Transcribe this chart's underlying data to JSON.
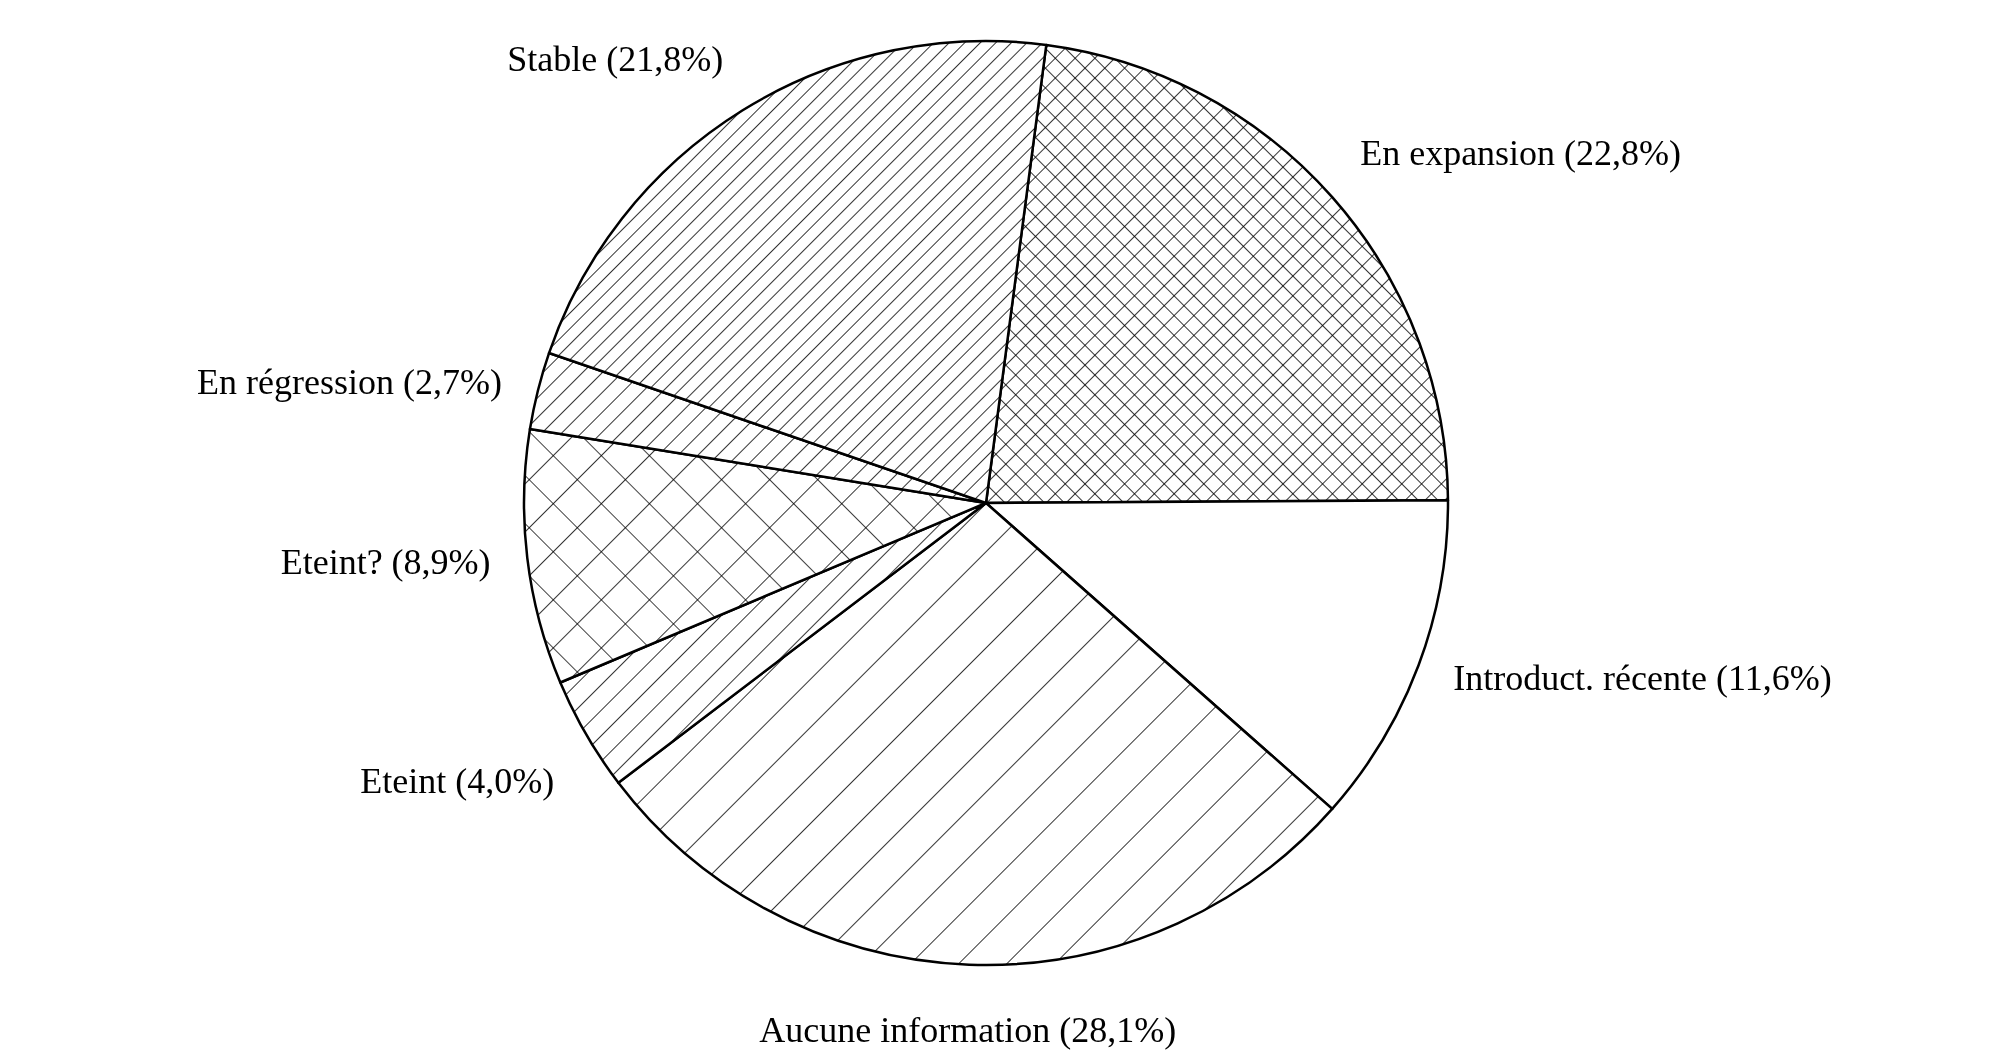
{
  "chart_data": {
    "type": "pie",
    "categories": [
      "En expansion",
      "Introduct. récente",
      "Aucune information",
      "Eteint",
      "Eteint?",
      "En régression",
      "Stable"
    ],
    "values": [
      22.8,
      11.6,
      28.1,
      4.0,
      8.9,
      2.7,
      21.8
    ],
    "value_labels": [
      "(22,8%)",
      "(11,6%)",
      "(28,1%)",
      "(4,0%)",
      "(8,9%)",
      "(2,7%)",
      "(21,8%)"
    ]
  }
}
